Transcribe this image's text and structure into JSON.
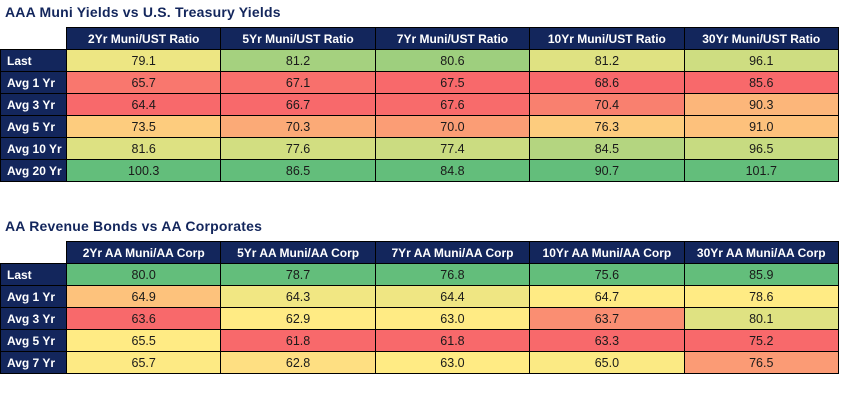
{
  "colors": {
    "title_text": "#13265C",
    "header_bg": "#13265C",
    "header_text": "#FFFFFF",
    "cell_text": "#1A1A1A",
    "grid": "#000000",
    "scale_low": "#F8696B",
    "scale_mid": "#FFEB84",
    "scale_high": "#63BE7B"
  },
  "chart_data": [
    {
      "type": "heatmap",
      "title": "AAA Muni Yields vs U.S. Treasury Yields",
      "columns": [
        "2Yr Muni/UST Ratio",
        "5Yr Muni/UST Ratio",
        "7Yr Muni/UST Ratio",
        "10Yr Muni/UST Ratio",
        "30Yr Muni/UST Ratio"
      ],
      "rows": [
        "Last",
        "Avg 1 Yr",
        "Avg 3 Yr",
        "Avg 5 Yr",
        "Avg 10 Yr",
        "Avg 20 Yr"
      ],
      "values": [
        [
          79.1,
          81.2,
          80.6,
          81.2,
          96.1
        ],
        [
          65.7,
          67.1,
          67.5,
          68.6,
          85.6
        ],
        [
          64.4,
          66.7,
          67.6,
          70.4,
          90.3
        ],
        [
          73.5,
          70.3,
          70.0,
          76.3,
          91.0
        ],
        [
          81.6,
          77.6,
          77.4,
          84.5,
          96.5
        ],
        [
          100.3,
          86.5,
          84.8,
          90.7,
          101.7
        ]
      ],
      "colorscale_note": "3-color scale per column: min=red, median=yellow, max=green",
      "value_format": "one decimal place"
    },
    {
      "type": "heatmap",
      "title": "AA Revenue Bonds vs AA Corporates",
      "columns": [
        "2Yr AA Muni/AA Corp",
        "5Yr AA Muni/AA Corp",
        "7Yr AA Muni/AA Corp",
        "10Yr AA Muni/AA Corp",
        "30Yr AA Muni/AA Corp"
      ],
      "rows": [
        "Last",
        "Avg 1 Yr",
        "Avg 3 Yr",
        "Avg 5 Yr",
        "Avg 7 Yr"
      ],
      "values": [
        [
          80.0,
          78.7,
          76.8,
          75.6,
          85.9
        ],
        [
          64.9,
          64.3,
          64.4,
          64.7,
          78.6
        ],
        [
          63.6,
          62.9,
          63.0,
          63.7,
          80.1
        ],
        [
          65.5,
          61.8,
          61.8,
          63.3,
          75.2
        ],
        [
          65.7,
          62.8,
          63.0,
          65.0,
          76.5
        ]
      ],
      "colorscale_note": "3-color scale per column: min=red, median=yellow, max=green",
      "value_format": "one decimal place"
    }
  ]
}
